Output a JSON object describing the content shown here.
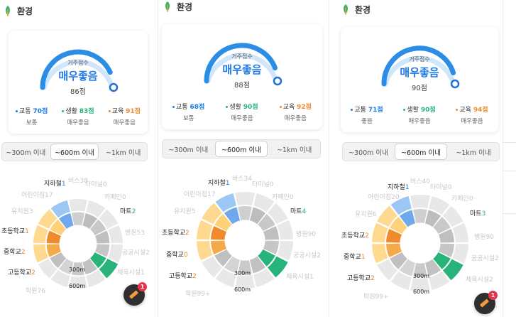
{
  "panels": [
    {
      "header": "환경",
      "gauge": {
        "label": "거주점수",
        "grade": "매우좋음",
        "score": "86점",
        "fraction": 0.86
      },
      "subs": [
        {
          "name": "교통",
          "value": "70점",
          "grade": "보통",
          "color": "#1e7be8"
        },
        {
          "name": "생활",
          "value": "83점",
          "grade": "매우좋음",
          "color": "#27b37a"
        },
        {
          "name": "교육",
          "value": "91점",
          "grade": "매우좋음",
          "color": "#f08a2c"
        }
      ],
      "tabs": [
        "~300m 이내",
        "~600m 이내",
        "~1km 이내"
      ],
      "active_tab": 1,
      "labels": [
        {
          "name": "지하철",
          "count": "1",
          "color": "#1e7be8"
        },
        {
          "name": "마트",
          "count": "2",
          "color": "#27b37a"
        },
        {
          "name": "초등학교",
          "count": "1",
          "color": "#f08a2c"
        },
        {
          "name": "중학교",
          "count": "2",
          "color": "#f08a2c"
        },
        {
          "name": "고등학교",
          "count": "2",
          "color": "#f08a2c"
        }
      ],
      "faded_labels": [
        "버스38",
        "어린이집17",
        "유치원3",
        "학원76",
        "타미널0",
        "카페인0",
        "병원53",
        "공공시설2",
        "체육시설1"
      ],
      "ring_labels": [
        "300m",
        "600m"
      ]
    },
    {
      "header": "환경",
      "gauge": {
        "label": "거주점수",
        "grade": "매우좋음",
        "score": "88점",
        "fraction": 0.88
      },
      "subs": [
        {
          "name": "교통",
          "value": "68점",
          "grade": "보통",
          "color": "#1e7be8"
        },
        {
          "name": "생활",
          "value": "90점",
          "grade": "매우좋음",
          "color": "#27b37a"
        },
        {
          "name": "교육",
          "value": "92점",
          "grade": "매우좋음",
          "color": "#f08a2c"
        }
      ],
      "tabs": [
        "~300m 이내",
        "~600m 이내",
        "~1km 이내"
      ],
      "active_tab": 1,
      "labels": [
        {
          "name": "지하철",
          "count": "1",
          "color": "#1e7be8"
        },
        {
          "name": "마트",
          "count": "4",
          "color": "#27b37a"
        },
        {
          "name": "초등학교",
          "count": "2",
          "color": "#f08a2c"
        },
        {
          "name": "중학교",
          "count": "0",
          "color": "#f08a2c"
        },
        {
          "name": "고등학교",
          "count": "2",
          "color": "#f08a2c"
        }
      ],
      "faded_labels": [
        "버스34",
        "어린이집17",
        "유치원5",
        "학원99+",
        "타미널0",
        "카페인0",
        "병원90",
        "공공시설2",
        "체육시설1"
      ],
      "ring_labels": [
        "300m",
        "600m"
      ]
    },
    {
      "header": "환경",
      "gauge": {
        "label": "거주점수",
        "grade": "매우좋음",
        "score": "90점",
        "fraction": 0.9
      },
      "subs": [
        {
          "name": "교통",
          "value": "71점",
          "grade": "좋음",
          "color": "#1e7be8"
        },
        {
          "name": "생활",
          "value": "90점",
          "grade": "매우좋음",
          "color": "#27b37a"
        },
        {
          "name": "교육",
          "value": "94점",
          "grade": "매우좋음",
          "color": "#f08a2c"
        }
      ],
      "tabs": [
        "~300m 이내",
        "~600m 이내",
        "~1km 이내"
      ],
      "active_tab": 1,
      "labels": [
        {
          "name": "지하철",
          "count": "1",
          "color": "#1e7be8"
        },
        {
          "name": "마트",
          "count": "3",
          "color": "#27b37a"
        },
        {
          "name": "초등학교",
          "count": "2",
          "color": "#f08a2c"
        },
        {
          "name": "중학교",
          "count": "1",
          "color": "#f08a2c"
        },
        {
          "name": "고등학교",
          "count": "2",
          "color": "#f08a2c"
        }
      ],
      "faded_labels": [
        "버스40",
        "어린이집20",
        "유치원6",
        "학원99+",
        "타미널0",
        "카페인0",
        "병원90",
        "공공시설2",
        "체육시설2"
      ],
      "ring_labels": [
        "300m",
        "600m"
      ]
    }
  ],
  "fab": {
    "badge": "1"
  }
}
